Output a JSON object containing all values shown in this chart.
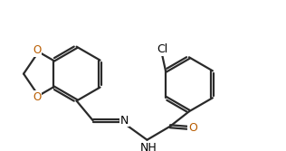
{
  "bg_color": "#ffffff",
  "bond_color": "#2a2a2a",
  "o_color": "#b85c00",
  "n_color": "#000000",
  "cl_color": "#000000",
  "line_width": 1.6,
  "fig_width": 3.16,
  "fig_height": 1.67,
  "dpi": 100,
  "xlim": [
    0,
    10.5
  ],
  "ylim": [
    0.5,
    5.8
  ]
}
